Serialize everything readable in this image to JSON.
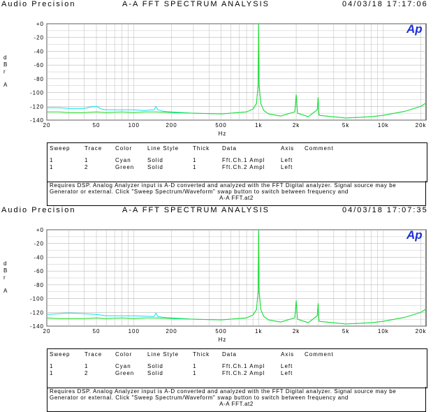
{
  "panels": [
    {
      "header": {
        "brand": "Audio Precision",
        "title": "A-A FFT SPECTRUM ANALYSIS",
        "datetime": "04/03/18 17:17:06"
      },
      "legend": {
        "headers": [
          "Sweep",
          "Trace",
          "Color",
          "Line Style",
          "Thick",
          "Data",
          "Axis",
          "Comment"
        ],
        "rows": [
          [
            "1",
            "1",
            "Cyan",
            "Solid",
            "1",
            "Fft.Ch.1 Ampl",
            "Left",
            ""
          ],
          [
            "1",
            "2",
            "Green",
            "Solid",
            "1",
            "Fft.Ch.2 Ampl",
            "Left",
            ""
          ]
        ]
      },
      "notes": {
        "text": "Requires DSP. Analog Analyzer input is A-D converted and analyzed with the FFT Digital analyzer. Signal source may be Generator or external. Click \"Sweep Spectrum/Waveform\" swap button to switch between frequency and",
        "filename": "A-A FFT.at2"
      }
    },
    {
      "header": {
        "brand": "Audio Precision",
        "title": "A-A FFT SPECTRUM ANALYSIS",
        "datetime": "04/03/18 17:07:35"
      },
      "legend": {
        "headers": [
          "Sweep",
          "Trace",
          "Color",
          "Line Style",
          "Thick",
          "Data",
          "Axis",
          "Comment"
        ],
        "rows": [
          [
            "1",
            "1",
            "Cyan",
            "Solid",
            "1",
            "Fft.Ch.1 Ampl",
            "Left",
            ""
          ],
          [
            "1",
            "2",
            "Green",
            "Solid",
            "1",
            "Fft.Ch.2 Ampl",
            "Left",
            ""
          ]
        ]
      },
      "notes": {
        "text": "Requires DSP. Analog Analyzer input is A-D converted and analyzed with the FFT Digital analyzer. Signal source may be Generator or external. Click \"Sweep Spectrum/Waveform\" swap button to switch between frequency and",
        "filename": "A-A FFT.at2"
      }
    }
  ],
  "logo_text": "Ap",
  "colors": {
    "cyan": "#00e5f0",
    "green": "#22dd22",
    "grid": "#b8b8b8",
    "logo": "#1a2fd8"
  },
  "chart_data": [
    {
      "type": "line",
      "title": "A-A FFT SPECTRUM ANALYSIS",
      "xlabel": "Hz",
      "ylabel": [
        "d",
        "B",
        "r",
        "A"
      ],
      "xscale": "log",
      "xlim": [
        20,
        22000
      ],
      "ylim": [
        -140,
        0
      ],
      "xticks": [
        20,
        50,
        100,
        200,
        500,
        1000,
        2000,
        5000,
        10000,
        20000
      ],
      "xtick_labels": [
        "20",
        "50",
        "100",
        "200",
        "500",
        "1k",
        "2k",
        "5k",
        "10k",
        "20k"
      ],
      "yticks": [
        0,
        -20,
        -40,
        -60,
        -80,
        -100,
        -120,
        -140
      ],
      "ytick_labels": [
        "+0",
        "-20",
        "-40",
        "-60",
        "-80",
        "-100",
        "-120",
        "-140"
      ],
      "grid": true,
      "series": [
        {
          "name": "Fft.Ch.1 Ampl",
          "color": "cyan",
          "x": [
            20,
            25,
            30,
            40,
            45,
            50,
            55,
            60,
            80,
            100,
            120,
            145,
            150,
            155,
            170,
            200,
            300,
            500,
            800,
            900,
            960,
            990,
            1000,
            1010,
            1040,
            1100,
            1200,
            1500,
            1950,
            2000,
            2050,
            2500,
            2950,
            3000,
            3050,
            5000,
            8000,
            10000,
            15000,
            20000,
            22000
          ],
          "y": [
            -122,
            -122,
            -123,
            -123,
            -121,
            -120,
            -124,
            -125,
            -125,
            -125,
            -126,
            -125,
            -120,
            -125,
            -127,
            -128,
            -130,
            -131,
            -128,
            -124,
            -116,
            -90,
            -1,
            -90,
            -116,
            -126,
            -131,
            -134,
            -128,
            -103,
            -130,
            -135,
            -125,
            -107,
            -133,
            -137,
            -135,
            -133,
            -127,
            -120,
            -115
          ]
        },
        {
          "name": "Fft.Ch.2 Ampl",
          "color": "green",
          "x": [
            20,
            25,
            30,
            40,
            50,
            60,
            80,
            100,
            120,
            150,
            200,
            300,
            500,
            800,
            900,
            960,
            990,
            1000,
            1010,
            1040,
            1100,
            1200,
            1500,
            1950,
            2000,
            2050,
            2500,
            2950,
            3000,
            3050,
            5000,
            8000,
            10000,
            15000,
            20000,
            22000
          ],
          "y": [
            -128,
            -128,
            -129,
            -129,
            -128,
            -129,
            -128,
            -129,
            -128,
            -128,
            -129,
            -130,
            -131,
            -128,
            -124,
            -116,
            -90,
            -1,
            -90,
            -116,
            -126,
            -131,
            -134,
            -128,
            -103,
            -130,
            -135,
            -125,
            -107,
            -133,
            -137,
            -135,
            -133,
            -127,
            -120,
            -115
          ]
        }
      ]
    },
    {
      "type": "line",
      "title": "A-A FFT SPECTRUM ANALYSIS",
      "xlabel": "Hz",
      "ylabel": [
        "d",
        "B",
        "r",
        "A"
      ],
      "xscale": "log",
      "xlim": [
        20,
        22000
      ],
      "ylim": [
        -140,
        0
      ],
      "xticks": [
        20,
        50,
        100,
        200,
        500,
        1000,
        2000,
        5000,
        10000,
        20000
      ],
      "xtick_labels": [
        "20",
        "50",
        "100",
        "200",
        "500",
        "1k",
        "2k",
        "5k",
        "10k",
        "20k"
      ],
      "yticks": [
        0,
        -20,
        -40,
        -60,
        -80,
        -100,
        -120,
        -140
      ],
      "ytick_labels": [
        "+0",
        "-20",
        "-40",
        "-60",
        "-80",
        "-100",
        "-120",
        "-140"
      ],
      "grid": true,
      "series": [
        {
          "name": "Fft.Ch.1 Ampl",
          "color": "cyan",
          "x": [
            20,
            25,
            30,
            40,
            50,
            60,
            80,
            100,
            145,
            150,
            155,
            170,
            200,
            300,
            500,
            800,
            900,
            960,
            990,
            1000,
            1010,
            1040,
            1100,
            1200,
            1500,
            1950,
            2000,
            2050,
            2500,
            2950,
            3000,
            3050,
            5000,
            8000,
            10000,
            15000,
            20000,
            22000
          ],
          "y": [
            -123,
            -122,
            -121,
            -122,
            -123,
            -125,
            -125,
            -125,
            -126,
            -121,
            -126,
            -127,
            -128,
            -130,
            -131,
            -128,
            -124,
            -116,
            -90,
            -1,
            -90,
            -116,
            -126,
            -131,
            -134,
            -128,
            -103,
            -130,
            -135,
            -125,
            -107,
            -133,
            -137,
            -135,
            -133,
            -127,
            -120,
            -115
          ]
        },
        {
          "name": "Fft.Ch.2 Ampl",
          "color": "green",
          "x": [
            20,
            25,
            30,
            40,
            50,
            60,
            80,
            100,
            120,
            150,
            200,
            300,
            500,
            800,
            900,
            960,
            990,
            1000,
            1010,
            1040,
            1100,
            1200,
            1500,
            1950,
            2000,
            2050,
            2500,
            2950,
            3000,
            3050,
            5000,
            8000,
            10000,
            15000,
            20000,
            22000
          ],
          "y": [
            -128,
            -129,
            -129,
            -129,
            -128,
            -129,
            -128,
            -129,
            -128,
            -128,
            -129,
            -130,
            -131,
            -128,
            -124,
            -116,
            -90,
            -1,
            -90,
            -116,
            -126,
            -131,
            -134,
            -128,
            -103,
            -130,
            -135,
            -125,
            -107,
            -133,
            -137,
            -135,
            -133,
            -127,
            -120,
            -115
          ]
        }
      ]
    }
  ]
}
